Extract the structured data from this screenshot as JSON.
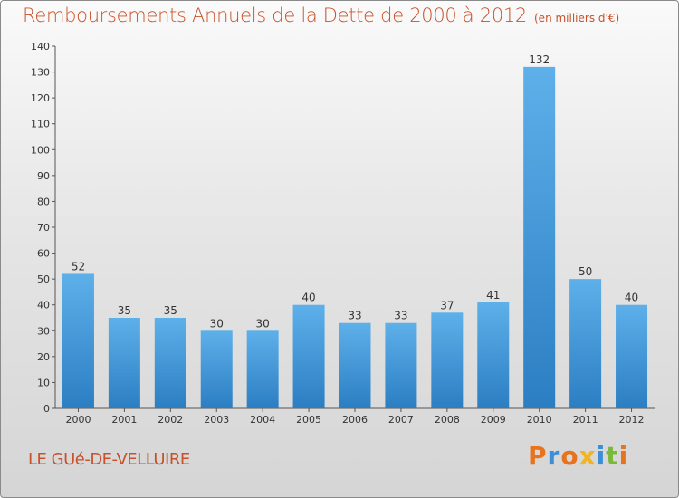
{
  "title": "Remboursements Annuels de la Dette de 2000 à 2012",
  "unit": "(en milliers d'€)",
  "town": "LE GUé-DE-VELLUIRE",
  "logo": "Proxiti",
  "colors": {
    "bar_top": "#5eb0ea",
    "bar_bottom": "#2b7ec2",
    "title": "#c7522a",
    "logo": [
      "#e8731c",
      "#3b8fd6",
      "#e8731c",
      "#f0b428",
      "#3b8fd6",
      "#7bb93a",
      "#e8731c"
    ]
  },
  "chart_data": {
    "type": "bar",
    "title": "Remboursements Annuels de la Dette de 2000 à 2012",
    "xlabel": "",
    "ylabel": "",
    "categories": [
      "2000",
      "2001",
      "2002",
      "2003",
      "2004",
      "2005",
      "2006",
      "2007",
      "2008",
      "2009",
      "2010",
      "2011",
      "2012"
    ],
    "values": [
      52,
      35,
      35,
      30,
      30,
      40,
      33,
      33,
      37,
      41,
      132,
      50,
      40
    ],
    "ylim": [
      0,
      140
    ],
    "yticks": [
      0,
      10,
      20,
      30,
      40,
      50,
      60,
      70,
      80,
      90,
      100,
      110,
      120,
      130,
      140
    ],
    "grid": false
  }
}
